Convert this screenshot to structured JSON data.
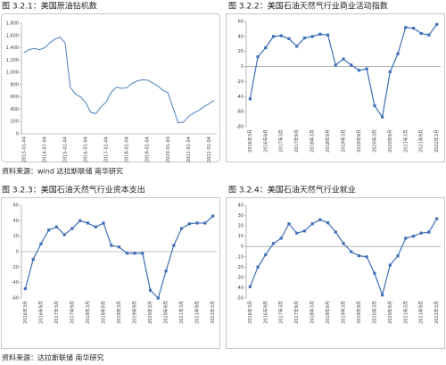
{
  "chart_data": [
    {
      "type": "line",
      "title": "图 3.2.1：美国原油钻机数",
      "color": "#4a7ebb",
      "categories": [
        "2013-01-04",
        null,
        null,
        null,
        "2014-01-04",
        null,
        null,
        null,
        "2015-01-04",
        null,
        null,
        null,
        "2016-01-04",
        null,
        null,
        null,
        "2017-01-04",
        null,
        null,
        null,
        "2018-01-04",
        null,
        null,
        null,
        "2019-01-04",
        null,
        null,
        null,
        "2020-01-04",
        null,
        null,
        null,
        "2021-01-04",
        null,
        null,
        null,
        "2022-01-04",
        null
      ],
      "values": [
        1320,
        1370,
        1390,
        1370,
        1400,
        1480,
        1540,
        1575,
        1480,
        760,
        650,
        600,
        510,
        350,
        330,
        440,
        520,
        680,
        760,
        740,
        750,
        820,
        860,
        880,
        875,
        830,
        780,
        710,
        670,
        420,
        180,
        190,
        280,
        340,
        380,
        440,
        490,
        545
      ],
      "ylim": [
        0,
        1800
      ],
      "yticks": [
        0,
        200,
        400,
        600,
        800,
        {
          "value": 1000,
          "label": "1,000"
        },
        {
          "value": 1200,
          "label": "1,200"
        },
        {
          "value": 1400,
          "label": "1,400"
        },
        {
          "value": 1600,
          "label": "1,600"
        },
        {
          "value": 1800,
          "label": "1,800"
        }
      ],
      "markers": false
    },
    {
      "type": "line",
      "title": "图 3.2.2：美国石油天然气行业商业活动指数",
      "color": "#3f6fb6",
      "categories": [
        "2016年3月",
        null,
        "2016年9月",
        null,
        "2017年3月",
        null,
        "2017年9月",
        null,
        "2018年3月",
        null,
        "2018年9月",
        null,
        "2019年3月",
        null,
        "2019年9月",
        null,
        "2020年3月",
        null,
        "2020年9月",
        null,
        "2021年3月",
        null,
        "2021年9月",
        null,
        "2022年3月"
      ],
      "values": [
        -43,
        13,
        25,
        40,
        41,
        37,
        27,
        38,
        40,
        43,
        42,
        2,
        10,
        2,
        -5,
        -3,
        -52,
        -67,
        -7,
        17,
        52,
        51,
        44,
        42,
        56
      ],
      "ylim": [
        -80,
        60
      ],
      "yticks": [
        -80,
        -60,
        -40,
        -20,
        0,
        20,
        40,
        60
      ],
      "markers": true
    },
    {
      "type": "line",
      "title": "图 3.2.3：美国石油天然气行业资本支出",
      "color": "#3f6fb6",
      "categories": [
        "2016年3月",
        null,
        "2016年9月",
        null,
        "2017年3月",
        null,
        "2017年9月",
        null,
        "2018年3月",
        null,
        "2018年9月",
        null,
        "2019年3月",
        null,
        "2019年9月",
        null,
        "2020年3月",
        null,
        "2020年9月",
        null,
        "2021年3月",
        null,
        "2021年9月",
        null,
        "2022年3月"
      ],
      "values": [
        -48,
        -10,
        10,
        28,
        32,
        22,
        30,
        40,
        37,
        32,
        37,
        8,
        6,
        -2,
        -2,
        -2,
        -50,
        -60,
        -25,
        8,
        30,
        36,
        37,
        37,
        46
      ],
      "ylim": [
        -60,
        60
      ],
      "yticks": [
        -60,
        -40,
        -20,
        0,
        20,
        40,
        60
      ],
      "markers": true
    },
    {
      "type": "line",
      "title": "图 3.2.4：美国石油天然气行业就业",
      "color": "#3f6fb6",
      "categories": [
        "2016年3月",
        null,
        "2016年9月",
        null,
        "2017年3月",
        null,
        "2017年9月",
        null,
        "2018年3月",
        null,
        "2018年9月",
        null,
        "2019年3月",
        null,
        "2019年9月",
        null,
        "2020年3月",
        null,
        "2020年9月",
        null,
        "2021年3月",
        null,
        "2021年9月",
        null,
        "2022年3月"
      ],
      "values": [
        -39,
        -20,
        -8,
        3,
        8,
        22,
        13,
        15,
        22,
        26,
        23,
        14,
        3,
        -5,
        -9,
        -10,
        -26,
        -47,
        -18,
        -9,
        8,
        10,
        13,
        14,
        27
      ],
      "ylim": [
        -50,
        40
      ],
      "yticks": [
        -50,
        -40,
        -30,
        -20,
        -10,
        0,
        10,
        20,
        30,
        40
      ],
      "markers": true
    }
  ],
  "sources": [
    "资料来源：wind 达拉斯联储 南华研究",
    "资料来源：达拉斯联储 南华研究"
  ]
}
